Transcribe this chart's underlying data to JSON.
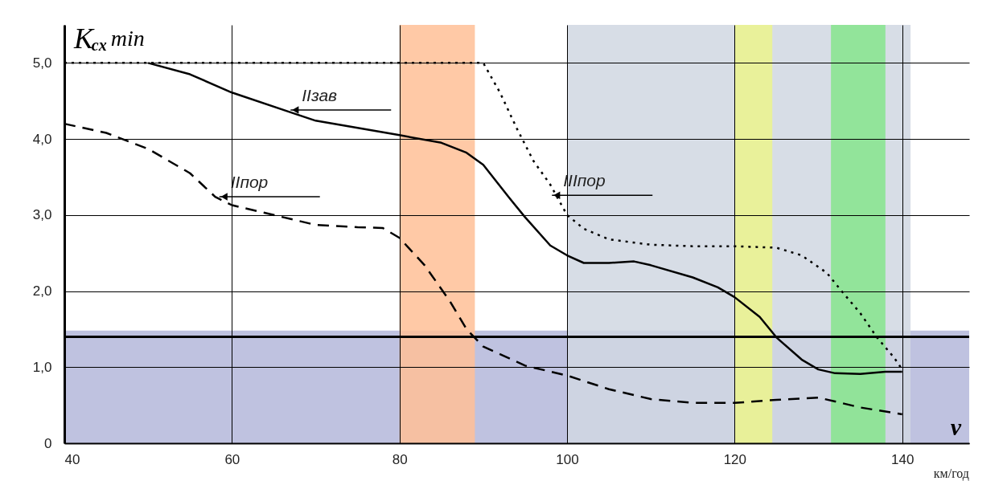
{
  "chart_data": {
    "type": "line",
    "xlabel": "v",
    "ylabel": "K$_{cx}$ min",
    "xlim": [
      40,
      148
    ],
    "xticks": [
      40,
      60,
      80,
      100,
      120,
      140
    ],
    "ylim": [
      0,
      5.5
    ],
    "yticks": [
      0,
      {
        "value": 1,
        "label": "1,0"
      },
      {
        "value": 2,
        "label": "2,0"
      },
      {
        "value": 3,
        "label": "3,0"
      },
      {
        "value": 4,
        "label": "4,0"
      },
      {
        "value": 5,
        "label": "5,0"
      }
    ],
    "grid": true,
    "series": [
      {
        "color": "#000000",
        "line_style": "solid",
        "x": [
          50,
          55,
          60,
          67,
          70,
          80,
          85,
          88,
          90,
          93,
          95,
          98,
          100,
          102,
          105,
          108,
          110,
          115,
          118,
          120,
          123,
          125,
          128,
          130,
          132,
          135,
          138,
          140
        ],
        "values": [
          5.0,
          4.85,
          4.61,
          4.35,
          4.24,
          4.05,
          3.95,
          3.82,
          3.66,
          3.24,
          2.97,
          2.6,
          2.47,
          2.37,
          2.37,
          2.39,
          2.34,
          2.18,
          2.05,
          1.92,
          1.66,
          1.39,
          1.1,
          0.97,
          0.92,
          0.91,
          0.94,
          0.94
        ]
      },
      {
        "color": "#000000",
        "line_style": "dashed",
        "x": [
          40,
          45,
          50,
          55,
          58,
          60,
          65,
          70,
          75,
          78,
          80,
          83,
          86,
          88,
          90,
          95,
          100,
          105,
          110,
          115,
          120,
          125,
          130,
          135,
          140
        ],
        "values": [
          4.2,
          4.08,
          3.87,
          3.55,
          3.24,
          3.13,
          3.0,
          2.87,
          2.84,
          2.83,
          2.7,
          2.34,
          1.87,
          1.5,
          1.27,
          1.02,
          0.89,
          0.71,
          0.58,
          0.53,
          0.53,
          0.57,
          0.6,
          0.47,
          0.38
        ]
      },
      {
        "color": "#000000",
        "line_style": "dotted",
        "x": [
          40,
          90,
          92,
          94,
          96,
          98,
          100,
          102,
          105,
          110,
          115,
          120,
          125,
          128,
          131,
          133,
          135,
          137,
          139,
          140
        ],
        "values": [
          5.0,
          5.0,
          4.61,
          4.14,
          3.71,
          3.4,
          3.0,
          2.82,
          2.68,
          2.61,
          2.59,
          2.59,
          2.57,
          2.47,
          2.24,
          1.97,
          1.71,
          1.39,
          1.13,
          0.97
        ]
      }
    ],
    "ref_lines": [
      {
        "axis": "y",
        "value": 1.4,
        "color": "#000000"
      }
    ],
    "bands": [
      {
        "axis": "y",
        "from": 0,
        "to": 1.48,
        "color": "#b4b7da"
      },
      {
        "axis": "x",
        "from": 100,
        "to": 141,
        "color": "#d0d7e2"
      },
      {
        "axis": "x",
        "from": 80,
        "to": 89,
        "color": "#ffbf96"
      },
      {
        "axis": "x",
        "from": 120,
        "to": 124.5,
        "color": "#ecf48c"
      },
      {
        "axis": "x",
        "from": 131.5,
        "to": 138,
        "color": "#86e58c"
      }
    ],
    "annotations": [
      {
        "text": "IIзав",
        "x": 67,
        "y": 4.38
      },
      {
        "text": "IIпор",
        "x": 58.5,
        "y": 3.24
      },
      {
        "text": "IIIпор",
        "x": 98.2,
        "y": 3.26
      },
      "км/год"
    ]
  }
}
